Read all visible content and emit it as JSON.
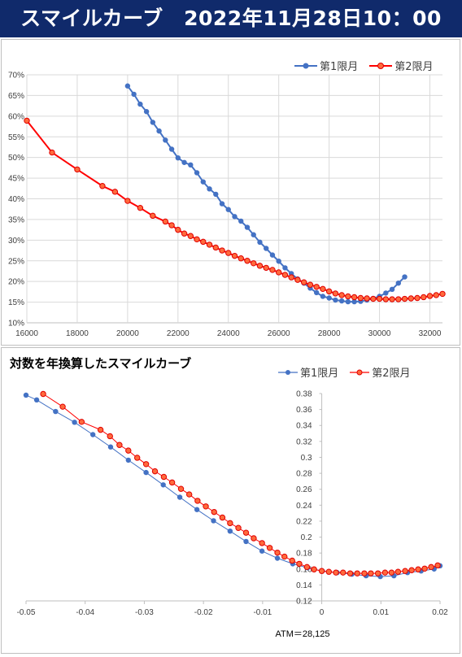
{
  "header": {
    "title": "スマイルカーブ　2022年11月28日10：00"
  },
  "colors": {
    "series1": "#4472c4",
    "series2": "#ff0000",
    "series2_fill": "#ff6a3d",
    "header_bg": "#102a6b"
  },
  "chart_data": [
    {
      "type": "line",
      "title": "",
      "xlabel": "",
      "ylabel": "",
      "xlim": [
        16000,
        32500
      ],
      "ylim": [
        10,
        70
      ],
      "x_ticks": [
        "16000",
        "18000",
        "20000",
        "22000",
        "24000",
        "26000",
        "28000",
        "30000",
        "32000"
      ],
      "y_ticks": [
        "10%",
        "15%",
        "20%",
        "25%",
        "30%",
        "35%",
        "40%",
        "45%",
        "50%",
        "55%",
        "60%",
        "65%",
        "70%"
      ],
      "legend_position": "top-right",
      "grid": true,
      "series": [
        {
          "name": "第1限月",
          "points": [
            [
              20000,
              67.3
            ],
            [
              20250,
              65.3
            ],
            [
              20500,
              62.9
            ],
            [
              20750,
              61.1
            ],
            [
              21000,
              58.5
            ],
            [
              21250,
              56.4
            ],
            [
              21500,
              54.2
            ],
            [
              21750,
              52.0
            ],
            [
              22000,
              49.9
            ],
            [
              22250,
              48.8
            ],
            [
              22500,
              48.2
            ],
            [
              22750,
              46.3
            ],
            [
              23000,
              44.1
            ],
            [
              23250,
              42.4
            ],
            [
              23500,
              41.1
            ],
            [
              23750,
              38.8
            ],
            [
              24000,
              37.4
            ],
            [
              24250,
              35.7
            ],
            [
              24500,
              34.6
            ],
            [
              24750,
              33.1
            ],
            [
              25000,
              31.3
            ],
            [
              25250,
              29.5
            ],
            [
              25500,
              28.0
            ],
            [
              25750,
              26.4
            ],
            [
              26000,
              24.9
            ],
            [
              26250,
              23.3
            ],
            [
              26500,
              21.9
            ],
            [
              26750,
              20.6
            ],
            [
              27000,
              19.6
            ],
            [
              27250,
              18.4
            ],
            [
              27500,
              17.3
            ],
            [
              27750,
              16.4
            ],
            [
              28000,
              16.0
            ],
            [
              28250,
              15.5
            ],
            [
              28500,
              15.3
            ],
            [
              28750,
              15.1
            ],
            [
              29000,
              15.1
            ],
            [
              29250,
              15.2
            ],
            [
              29500,
              15.5
            ],
            [
              29750,
              15.9
            ],
            [
              30000,
              16.4
            ],
            [
              30250,
              17.2
            ],
            [
              30500,
              18.1
            ],
            [
              30750,
              19.6
            ],
            [
              31000,
              21.1
            ]
          ]
        },
        {
          "name": "第2限月",
          "points": [
            [
              16000,
              58.9
            ],
            [
              17000,
              51.2
            ],
            [
              18000,
              47.1
            ],
            [
              19000,
              43.1
            ],
            [
              19500,
              41.7
            ],
            [
              20000,
              39.5
            ],
            [
              20500,
              37.8
            ],
            [
              21000,
              35.9
            ],
            [
              21500,
              34.5
            ],
            [
              21750,
              33.6
            ],
            [
              22000,
              32.5
            ],
            [
              22250,
              31.6
            ],
            [
              22500,
              31.0
            ],
            [
              22750,
              30.2
            ],
            [
              23000,
              29.6
            ],
            [
              23250,
              28.9
            ],
            [
              23500,
              28.2
            ],
            [
              23750,
              27.5
            ],
            [
              24000,
              26.9
            ],
            [
              24250,
              26.2
            ],
            [
              24500,
              25.6
            ],
            [
              24750,
              25.0
            ],
            [
              25000,
              24.4
            ],
            [
              25250,
              23.8
            ],
            [
              25500,
              23.3
            ],
            [
              25750,
              22.8
            ],
            [
              26000,
              22.2
            ],
            [
              26250,
              21.6
            ],
            [
              26500,
              21.0
            ],
            [
              26750,
              20.4
            ],
            [
              27000,
              19.8
            ],
            [
              27250,
              19.2
            ],
            [
              27500,
              18.7
            ],
            [
              27750,
              18.2
            ],
            [
              28000,
              17.6
            ],
            [
              28250,
              17.1
            ],
            [
              28500,
              16.7
            ],
            [
              28750,
              16.4
            ],
            [
              29000,
              16.2
            ],
            [
              29250,
              16.0
            ],
            [
              29500,
              15.9
            ],
            [
              29750,
              15.8
            ],
            [
              30000,
              15.8
            ],
            [
              30250,
              15.7
            ],
            [
              30500,
              15.7
            ],
            [
              30750,
              15.7
            ],
            [
              31000,
              15.8
            ],
            [
              31250,
              15.9
            ],
            [
              31500,
              16.0
            ],
            [
              31750,
              16.2
            ],
            [
              32000,
              16.5
            ],
            [
              32250,
              16.7
            ],
            [
              32500,
              17.0
            ]
          ]
        }
      ]
    },
    {
      "type": "scatter",
      "title": "対数を年換算したスマイルカーブ",
      "xlabel": "",
      "ylabel": "",
      "xlim": [
        -0.05,
        0.02
      ],
      "ylim": [
        0.12,
        0.38
      ],
      "x_ticks": [
        "-0.05",
        "-0.04",
        "-0.03",
        "-0.02",
        "-0.01",
        "0",
        "0.01",
        "0.02"
      ],
      "y_ticks": [
        "0.12",
        "0.14",
        "0.16",
        "0.18",
        "0.2",
        "0.22",
        "0.24",
        "0.26",
        "0.28",
        "0.3",
        "0.32",
        "0.34",
        "0.36",
        "0.38"
      ],
      "legend_position": "top-right",
      "grid": false,
      "annotation": "ATM＝28,125",
      "series": [
        {
          "name": "第1限月",
          "points": [
            [
              -0.05,
              0.378
            ],
            [
              -0.0482,
              0.372
            ],
            [
              -0.045,
              0.3575
            ],
            [
              -0.0418,
              0.344
            ],
            [
              -0.0387,
              0.3285
            ],
            [
              -0.0357,
              0.313
            ],
            [
              -0.0327,
              0.2965
            ],
            [
              -0.0297,
              0.281
            ],
            [
              -0.0268,
              0.2655
            ],
            [
              -0.024,
              0.25
            ],
            [
              -0.0211,
              0.2345
            ],
            [
              -0.0183,
              0.2205
            ],
            [
              -0.0155,
              0.2075
            ],
            [
              -0.0128,
              0.1945
            ],
            [
              -0.0101,
              0.1825
            ],
            [
              -0.0075,
              0.1735
            ],
            [
              -0.0049,
              0.1665
            ],
            [
              -0.0024,
              0.1615
            ],
            [
              0.0001,
              0.1575
            ],
            [
              0.0026,
              0.1555
            ],
            [
              0.0051,
              0.1535
            ],
            [
              0.0075,
              0.1515
            ],
            [
              0.0099,
              0.1505
            ],
            [
              0.0122,
              0.1515
            ],
            [
              0.0145,
              0.1555
            ],
            [
              0.0168,
              0.1575
            ],
            [
              0.019,
              0.16
            ],
            [
              0.02,
              0.164
            ]
          ]
        },
        {
          "name": "第2限月",
          "points": [
            [
              -0.0471,
              0.3795
            ],
            [
              -0.0438,
              0.3635
            ],
            [
              -0.0406,
              0.3445
            ],
            [
              -0.0374,
              0.3345
            ],
            [
              -0.0358,
              0.3265
            ],
            [
              -0.0342,
              0.3155
            ],
            [
              -0.0327,
              0.3085
            ],
            [
              -0.0312,
              0.2995
            ],
            [
              -0.0297,
              0.2915
            ],
            [
              -0.0282,
              0.2825
            ],
            [
              -0.0267,
              0.2755
            ],
            [
              -0.0253,
              0.2685
            ],
            [
              -0.0238,
              0.2605
            ],
            [
              -0.0224,
              0.2535
            ],
            [
              -0.021,
              0.2455
            ],
            [
              -0.0196,
              0.2385
            ],
            [
              -0.0182,
              0.2315
            ],
            [
              -0.0168,
              0.2245
            ],
            [
              -0.0155,
              0.2175
            ],
            [
              -0.0141,
              0.2115
            ],
            [
              -0.0128,
              0.2055
            ],
            [
              -0.0115,
              0.1985
            ],
            [
              -0.0101,
              0.1925
            ],
            [
              -0.0088,
              0.1865
            ],
            [
              -0.0075,
              0.1805
            ],
            [
              -0.0063,
              0.1755
            ],
            [
              -0.005,
              0.1705
            ],
            [
              -0.0038,
              0.1665
            ],
            [
              -0.0025,
              0.1625
            ],
            [
              -0.0013,
              0.1595
            ],
            [
              0.0,
              0.1575
            ],
            [
              0.0012,
              0.1565
            ],
            [
              0.0024,
              0.1555
            ],
            [
              0.0036,
              0.1555
            ],
            [
              0.0048,
              0.1545
            ],
            [
              0.006,
              0.1545
            ],
            [
              0.0072,
              0.1545
            ],
            [
              0.0083,
              0.1545
            ],
            [
              0.0095,
              0.1545
            ],
            [
              0.0107,
              0.1555
            ],
            [
              0.0118,
              0.1555
            ],
            [
              0.0129,
              0.1565
            ],
            [
              0.0141,
              0.1575
            ],
            [
              0.0152,
              0.1585
            ],
            [
              0.0163,
              0.1595
            ],
            [
              0.0174,
              0.1605
            ],
            [
              0.0185,
              0.1625
            ],
            [
              0.0196,
              0.1645
            ]
          ]
        }
      ]
    }
  ]
}
